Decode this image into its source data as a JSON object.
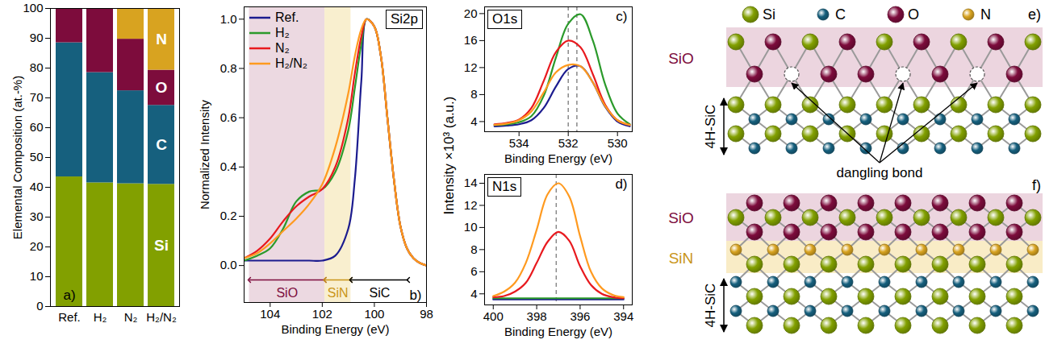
{
  "chart_data": [
    {
      "type": "bar",
      "stacked": true,
      "panel_label": "a)",
      "ylabel": "Elemental Composition (at.-%)",
      "categories": [
        "Ref.",
        "H₂",
        "N₂",
        "H₂/N₂"
      ],
      "series": [
        {
          "name": "Si",
          "color": "#82a000",
          "values": [
            43.5,
            41.5,
            41.2,
            41.0
          ]
        },
        {
          "name": "C",
          "color": "#16607e",
          "values": [
            45.0,
            37.0,
            31.2,
            26.5
          ]
        },
        {
          "name": "O",
          "color": "#7d0c3c",
          "values": [
            11.5,
            21.5,
            17.3,
            11.8
          ]
        },
        {
          "name": "N",
          "color": "#d8a320",
          "values": [
            0,
            0,
            10.3,
            20.7
          ]
        }
      ],
      "ylim": [
        0,
        100
      ],
      "yticks": [
        0,
        10,
        20,
        30,
        40,
        50,
        60,
        70,
        80,
        90,
        100
      ]
    },
    {
      "type": "line",
      "panel_label": "b)",
      "title": "Si2p",
      "xlabel": "Binding Energy (eV)",
      "ylabel": "Normalized Intensity",
      "x": [
        105,
        104.5,
        104,
        103.5,
        103,
        102.5,
        102,
        101.5,
        101,
        100.75,
        100.5,
        100.3,
        100,
        99.75,
        99.5,
        99.25,
        99,
        98.75,
        98.5,
        98.25,
        98
      ],
      "series": [
        {
          "name": "Ref.",
          "color": "#1c1c8f",
          "values": [
            0.02,
            0.02,
            0.02,
            0.02,
            0.02,
            0.02,
            0.02,
            0.04,
            0.15,
            0.35,
            0.75,
            1.0,
            0.97,
            0.85,
            0.6,
            0.35,
            0.16,
            0.07,
            0.03,
            0.01,
            0.0
          ]
        },
        {
          "name": "H₂",
          "color": "#2b9a2b",
          "values": [
            0.02,
            0.04,
            0.07,
            0.15,
            0.26,
            0.3,
            0.31,
            0.38,
            0.55,
            0.72,
            0.9,
            1.0,
            0.97,
            0.85,
            0.6,
            0.35,
            0.16,
            0.07,
            0.03,
            0.01,
            0.0
          ]
        },
        {
          "name": "N₂",
          "color": "#e8191e",
          "values": [
            0.03,
            0.06,
            0.11,
            0.18,
            0.24,
            0.28,
            0.31,
            0.4,
            0.6,
            0.78,
            0.93,
            1.0,
            0.97,
            0.85,
            0.6,
            0.35,
            0.16,
            0.07,
            0.03,
            0.01,
            0.0
          ]
        },
        {
          "name": "H₂/N₂",
          "color": "#ff9a1f",
          "values": [
            0.03,
            0.05,
            0.09,
            0.14,
            0.19,
            0.25,
            0.33,
            0.48,
            0.7,
            0.85,
            0.96,
            1.0,
            0.97,
            0.85,
            0.6,
            0.35,
            0.16,
            0.07,
            0.03,
            0.01,
            0.0
          ]
        }
      ],
      "xlim": [
        105,
        98
      ],
      "xticks": [
        104,
        102,
        100,
        98
      ],
      "ylim": [
        -0.15,
        1.05
      ],
      "yticks": [
        {
          "value": 0,
          "label": "0.0"
        },
        0.2,
        0.4,
        0.6,
        0.8,
        {
          "value": 1,
          "label": "1.0"
        }
      ],
      "legend": "top-left",
      "regions": [
        {
          "label": "SiO",
          "xmin": 101.9,
          "xmax": 104.8,
          "color": "#7d0c3c",
          "fill": "#ecd9e1"
        },
        {
          "label": "SiN",
          "xmin": 100.9,
          "xmax": 101.9,
          "color": "#c99518",
          "fill": "#f9efcf"
        },
        {
          "label": "SiC",
          "xmin": 98.7,
          "xmax": 100.9,
          "color": "#000000",
          "fill": null
        }
      ]
    },
    {
      "type": "line",
      "panel_label": "c)",
      "title": "O1s",
      "xlabel": "Binding Energy (eV)",
      "ylabel": "Intensity ×10³ (a.u.)",
      "x": [
        535,
        534.5,
        534,
        533.5,
        533,
        532.5,
        532,
        531.5,
        531,
        530.5,
        530,
        529.5
      ],
      "series": [
        {
          "name": "Ref.",
          "color": "#1c1c8f",
          "values": [
            3.3,
            3.4,
            3.6,
            4.2,
            6.0,
            9.2,
            11.8,
            12.2,
            9.8,
            6.2,
            4.0,
            3.3
          ]
        },
        {
          "name": "H₂",
          "color": "#2b9a2b",
          "values": [
            3.5,
            3.6,
            3.9,
            4.8,
            7.8,
            13.5,
            18.5,
            19.9,
            16.0,
            9.5,
            5.2,
            3.6
          ]
        },
        {
          "name": "N₂",
          "color": "#e8191e",
          "values": [
            3.6,
            3.8,
            4.3,
            6.0,
            10.0,
            14.3,
            16.0,
            15.0,
            11.0,
            6.5,
            4.2,
            3.5
          ]
        },
        {
          "name": "H₂/N₂",
          "color": "#ff9a1f",
          "values": [
            3.5,
            3.7,
            4.2,
            5.5,
            8.3,
            11.3,
            12.4,
            12.2,
            9.8,
            6.3,
            4.2,
            3.5
          ]
        }
      ],
      "xlim": [
        535.4,
        529.4
      ],
      "xticks": [
        534,
        532,
        530
      ],
      "ylim": [
        2.5,
        21
      ],
      "yticks": [
        4,
        8,
        12,
        16,
        20
      ],
      "reference_lines": [
        532.0,
        531.65
      ]
    },
    {
      "type": "line",
      "panel_label": "d)",
      "title": "N1s",
      "xlabel": "Binding Energy (eV)",
      "x": [
        400,
        399.5,
        399,
        398.5,
        398,
        397.5,
        397,
        396.5,
        396,
        395.5,
        395,
        394.5,
        394
      ],
      "series": [
        {
          "name": "Ref.",
          "color": "#1c1c8f",
          "values": [
            3.5,
            3.5,
            3.5,
            3.5,
            3.5,
            3.5,
            3.5,
            3.5,
            3.5,
            3.5,
            3.5,
            3.5,
            3.5
          ]
        },
        {
          "name": "H₂",
          "color": "#2b9a2b",
          "values": [
            3.6,
            3.6,
            3.6,
            3.6,
            3.6,
            3.6,
            3.6,
            3.6,
            3.6,
            3.6,
            3.6,
            3.6,
            3.6
          ]
        },
        {
          "name": "N₂",
          "color": "#e8191e",
          "values": [
            3.7,
            3.8,
            4.2,
            5.0,
            6.8,
            8.7,
            9.6,
            8.8,
            6.5,
            4.8,
            4.0,
            3.7,
            3.6
          ]
        },
        {
          "name": "H₂/N₂",
          "color": "#ff9a1f",
          "values": [
            3.8,
            4.2,
            5.0,
            6.8,
            9.8,
            13.0,
            14.0,
            12.8,
            9.2,
            6.0,
            4.5,
            3.9,
            3.7
          ]
        }
      ],
      "xlim": [
        400.4,
        393.6
      ],
      "xticks": [
        400,
        398,
        396,
        394
      ],
      "ylim": [
        3,
        14.8
      ],
      "yticks": [
        4,
        6,
        8,
        10,
        12,
        14
      ],
      "reference_lines": [
        397.1
      ]
    }
  ],
  "diagram": {
    "legend": [
      {
        "name": "Si",
        "color": "#82a000"
      },
      {
        "name": "C",
        "color": "#16607e"
      },
      {
        "name": "O",
        "color": "#7d0c3c"
      },
      {
        "name": "N",
        "color": "#d8a320"
      }
    ],
    "panels": [
      {
        "letter": "e)",
        "layers": [
          {
            "label": "SiO",
            "color": "#7d0c3c",
            "fill": "#ecd5df"
          }
        ],
        "substrate": "4H-SiC",
        "annotation": "dangling bond"
      },
      {
        "letter": "f)",
        "layers": [
          {
            "label": "SiO",
            "color": "#7d0c3c",
            "fill": "#ecd5df"
          },
          {
            "label": "SiN",
            "color": "#c99518",
            "fill": "#f9ecc6"
          }
        ],
        "substrate": "4H-SiC"
      }
    ]
  }
}
